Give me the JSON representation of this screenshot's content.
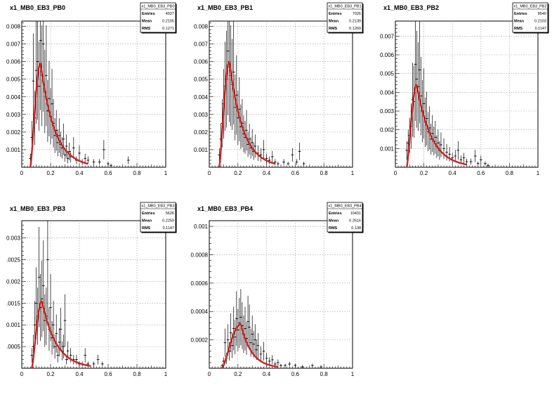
{
  "chart_data": [
    {
      "type": "histogram",
      "title": "x1_MB0_EB3_PB0",
      "xlim": [
        0,
        1
      ],
      "ylim": [
        0,
        0.0083
      ],
      "xticks": [
        0,
        0.2,
        0.4,
        0.6,
        0.8,
        1
      ],
      "xtick_labels": [
        "0",
        "0.2",
        "0.4",
        "0.6",
        "0.8",
        "1"
      ],
      "yticks": [
        0.001,
        0.002,
        0.003,
        0.004,
        0.005,
        0.006,
        0.007,
        0.008
      ],
      "ytick_labels": [
        "0.001",
        "0.002",
        "0.003",
        "0.004",
        "0.005",
        "0.006",
        "0.007",
        "0.008"
      ],
      "grid": true,
      "stats": {
        "name": "x1_MB0_EB3_PB0",
        "entries_label": "Entries",
        "entries": "4927",
        "mean_label": "Mean",
        "mean": "0.2105",
        "rms_label": "RMS",
        "rms": "0.1271"
      },
      "fit": {
        "color": "#cc2222",
        "x_range": [
          0.06,
          0.46
        ],
        "peak_x": 0.13,
        "peak_y": 0.0059
      },
      "points": [
        {
          "x": 0.06,
          "y": 0.0005
        },
        {
          "x": 0.07,
          "y": 0.0017
        },
        {
          "x": 0.08,
          "y": 0.0049
        },
        {
          "x": 0.09,
          "y": 0.0028
        },
        {
          "x": 0.1,
          "y": 0.0055
        },
        {
          "x": 0.11,
          "y": 0.006
        },
        {
          "x": 0.12,
          "y": 0.0046
        },
        {
          "x": 0.13,
          "y": 0.0072
        },
        {
          "x": 0.14,
          "y": 0.0052
        },
        {
          "x": 0.15,
          "y": 0.007
        },
        {
          "x": 0.16,
          "y": 0.0043
        },
        {
          "x": 0.17,
          "y": 0.0052
        },
        {
          "x": 0.18,
          "y": 0.0032
        },
        {
          "x": 0.19,
          "y": 0.0039
        },
        {
          "x": 0.2,
          "y": 0.0029
        },
        {
          "x": 0.21,
          "y": 0.0036
        },
        {
          "x": 0.22,
          "y": 0.0025
        },
        {
          "x": 0.23,
          "y": 0.0018
        },
        {
          "x": 0.24,
          "y": 0.0021
        },
        {
          "x": 0.25,
          "y": 0.0014
        },
        {
          "x": 0.26,
          "y": 0.0018
        },
        {
          "x": 0.27,
          "y": 0.0013
        },
        {
          "x": 0.28,
          "y": 0.0011
        },
        {
          "x": 0.29,
          "y": 0.0016
        },
        {
          "x": 0.3,
          "y": 0.0007
        },
        {
          "x": 0.31,
          "y": 0.0012
        },
        {
          "x": 0.32,
          "y": 0.0005
        },
        {
          "x": 0.33,
          "y": 0.0009
        },
        {
          "x": 0.34,
          "y": 0.0006
        },
        {
          "x": 0.36,
          "y": 0.0011
        },
        {
          "x": 0.38,
          "y": 0.0004
        },
        {
          "x": 0.4,
          "y": 0.0008
        },
        {
          "x": 0.42,
          "y": 0.0003
        },
        {
          "x": 0.44,
          "y": 0.0005
        },
        {
          "x": 0.46,
          "y": 0.0004
        },
        {
          "x": 0.5,
          "y": 0.0003
        },
        {
          "x": 0.54,
          "y": 0.0003
        },
        {
          "x": 0.57,
          "y": 0.001
        },
        {
          "x": 0.6,
          "y": 0.0002
        },
        {
          "x": 0.62,
          "y": 0.0001
        },
        {
          "x": 0.74,
          "y": 0.0004
        }
      ]
    },
    {
      "type": "histogram",
      "title": "x1_MB0_EB3_PB1",
      "xlim": [
        0,
        1
      ],
      "ylim": [
        0,
        0.0083
      ],
      "xticks": [
        0,
        0.2,
        0.4,
        0.6,
        0.8,
        1
      ],
      "xtick_labels": [
        "0",
        "0.2",
        "0.4",
        "0.6",
        "0.8",
        "1"
      ],
      "yticks": [
        0.001,
        0.002,
        0.003,
        0.004,
        0.005,
        0.006,
        0.007,
        0.008
      ],
      "ytick_labels": [
        "0.001",
        "0.002",
        "0.003",
        "0.004",
        "0.005",
        "0.006",
        "0.007",
        "0.008"
      ],
      "grid": true,
      "stats": {
        "name": "x1_MB0_EB3_PB1",
        "entries_label": "Entries",
        "entries": "7026",
        "mean_label": "Mean",
        "mean": "0.2139",
        "rms_label": "RMS",
        "rms": "0.1269"
      },
      "fit": {
        "color": "#cc2222",
        "x_range": [
          0.07,
          0.46
        ],
        "peak_x": 0.14,
        "peak_y": 0.006
      },
      "points": [
        {
          "x": 0.07,
          "y": 0.0007
        },
        {
          "x": 0.08,
          "y": 0.0016
        },
        {
          "x": 0.09,
          "y": 0.0025
        },
        {
          "x": 0.1,
          "y": 0.0036
        },
        {
          "x": 0.11,
          "y": 0.0046
        },
        {
          "x": 0.12,
          "y": 0.005
        },
        {
          "x": 0.13,
          "y": 0.0066
        },
        {
          "x": 0.14,
          "y": 0.0057
        },
        {
          "x": 0.15,
          "y": 0.0052
        },
        {
          "x": 0.16,
          "y": 0.0047
        },
        {
          "x": 0.17,
          "y": 0.0054
        },
        {
          "x": 0.18,
          "y": 0.0034
        },
        {
          "x": 0.19,
          "y": 0.0041
        },
        {
          "x": 0.2,
          "y": 0.0028
        },
        {
          "x": 0.21,
          "y": 0.0033
        },
        {
          "x": 0.22,
          "y": 0.0023
        },
        {
          "x": 0.23,
          "y": 0.0025
        },
        {
          "x": 0.24,
          "y": 0.0019
        },
        {
          "x": 0.25,
          "y": 0.0017
        },
        {
          "x": 0.26,
          "y": 0.0021
        },
        {
          "x": 0.27,
          "y": 0.0013
        },
        {
          "x": 0.28,
          "y": 0.0016
        },
        {
          "x": 0.29,
          "y": 0.0011
        },
        {
          "x": 0.3,
          "y": 0.0014
        },
        {
          "x": 0.31,
          "y": 0.0009
        },
        {
          "x": 0.32,
          "y": 0.0012
        },
        {
          "x": 0.34,
          "y": 0.0008
        },
        {
          "x": 0.36,
          "y": 0.0007
        },
        {
          "x": 0.38,
          "y": 0.001
        },
        {
          "x": 0.4,
          "y": 0.0005
        },
        {
          "x": 0.42,
          "y": 0.0004
        },
        {
          "x": 0.44,
          "y": 0.0006
        },
        {
          "x": 0.46,
          "y": 0.0003
        },
        {
          "x": 0.48,
          "y": 0.0002
        },
        {
          "x": 0.52,
          "y": 0.0003
        },
        {
          "x": 0.55,
          "y": 0.0002
        },
        {
          "x": 0.58,
          "y": 0.0007
        },
        {
          "x": 0.61,
          "y": 0.0003
        },
        {
          "x": 0.63,
          "y": 0.0009
        },
        {
          "x": 0.66,
          "y": 0.0002
        }
      ]
    },
    {
      "type": "histogram",
      "title": "x1_MB0_EB3_PB2",
      "xlim": [
        0,
        1
      ],
      "ylim": [
        0,
        0.0078
      ],
      "xticks": [
        0,
        0.2,
        0.4,
        0.6,
        0.8,
        1
      ],
      "xtick_labels": [
        "0",
        "0.2",
        "0.4",
        "0.6",
        "0.8",
        "1"
      ],
      "yticks": [
        0.001,
        0.002,
        0.003,
        0.004,
        0.005,
        0.006,
        0.007
      ],
      "ytick_labels": [
        "0.001",
        "0.002",
        "0.003",
        "0.004",
        "0.005",
        "0.006",
        "0.007"
      ],
      "grid": true,
      "stats": {
        "name": "x1_MB0_EB3_PB2",
        "entries_label": "Entries",
        "entries": "8540",
        "mean_label": "Mean",
        "mean": "0.2103",
        "rms_label": "RMS",
        "rms": "0.1147"
      },
      "fit": {
        "color": "#cc2222",
        "x_range": [
          0.08,
          0.5
        ],
        "peak_x": 0.15,
        "peak_y": 0.0044
      },
      "points": [
        {
          "x": 0.08,
          "y": 0.0009
        },
        {
          "x": 0.09,
          "y": 0.0013
        },
        {
          "x": 0.1,
          "y": 0.0017
        },
        {
          "x": 0.11,
          "y": 0.0022
        },
        {
          "x": 0.12,
          "y": 0.0036
        },
        {
          "x": 0.13,
          "y": 0.0035
        },
        {
          "x": 0.14,
          "y": 0.0055
        },
        {
          "x": 0.15,
          "y": 0.0047
        },
        {
          "x": 0.16,
          "y": 0.0043
        },
        {
          "x": 0.17,
          "y": 0.0052
        },
        {
          "x": 0.18,
          "y": 0.0038
        },
        {
          "x": 0.19,
          "y": 0.003
        },
        {
          "x": 0.2,
          "y": 0.0034
        },
        {
          "x": 0.21,
          "y": 0.0024
        },
        {
          "x": 0.22,
          "y": 0.0026
        },
        {
          "x": 0.23,
          "y": 0.0019
        },
        {
          "x": 0.24,
          "y": 0.0021
        },
        {
          "x": 0.25,
          "y": 0.0015
        },
        {
          "x": 0.26,
          "y": 0.0018
        },
        {
          "x": 0.27,
          "y": 0.0014
        },
        {
          "x": 0.28,
          "y": 0.0016
        },
        {
          "x": 0.29,
          "y": 0.0011
        },
        {
          "x": 0.3,
          "y": 0.0013
        },
        {
          "x": 0.31,
          "y": 0.0009
        },
        {
          "x": 0.32,
          "y": 0.0012
        },
        {
          "x": 0.34,
          "y": 0.001
        },
        {
          "x": 0.36,
          "y": 0.0008
        },
        {
          "x": 0.38,
          "y": 0.0007
        },
        {
          "x": 0.4,
          "y": 0.0005
        },
        {
          "x": 0.42,
          "y": 0.0006
        },
        {
          "x": 0.44,
          "y": 0.0009
        },
        {
          "x": 0.46,
          "y": 0.0004
        },
        {
          "x": 0.48,
          "y": 0.0005
        },
        {
          "x": 0.5,
          "y": 0.0003
        },
        {
          "x": 0.53,
          "y": 0.0003
        },
        {
          "x": 0.56,
          "y": 0.0006
        },
        {
          "x": 0.58,
          "y": 0.0002
        },
        {
          "x": 0.6,
          "y": 0.0004
        },
        {
          "x": 0.63,
          "y": 0.0002
        },
        {
          "x": 0.65,
          "y": 0.0001
        }
      ]
    },
    {
      "type": "histogram",
      "title": "x1_MB0_EB3_PB3",
      "xlim": [
        0,
        1
      ],
      "ylim": [
        0,
        0.0034
      ],
      "xticks": [
        0,
        0.2,
        0.4,
        0.6,
        0.8,
        1
      ],
      "xtick_labels": [
        "0",
        "0.2",
        "0.4",
        "0.6",
        "0.8",
        "1"
      ],
      "yticks": [
        0.0005,
        0.001,
        0.0015,
        0.002,
        0.0025,
        0.003
      ],
      "ytick_labels": [
        ".0005",
        "0.001",
        ".0015",
        "0.002",
        ".0025",
        "0.003"
      ],
      "grid": true,
      "stats": {
        "name": "x1_MB0_EB3_PB3",
        "entries_label": "Entries",
        "entries": "5626",
        "mean_label": "Mean",
        "mean": "0.2259",
        "rms_label": "RMS",
        "rms": "0.1147"
      },
      "fit": {
        "color": "#cc2222",
        "x_range": [
          0.07,
          0.48
        ],
        "peak_x": 0.14,
        "peak_y": 0.00155
      },
      "points": [
        {
          "x": 0.07,
          "y": 0.0003
        },
        {
          "x": 0.08,
          "y": 0.0005
        },
        {
          "x": 0.09,
          "y": 0.001
        },
        {
          "x": 0.1,
          "y": 0.0015
        },
        {
          "x": 0.11,
          "y": 0.0012
        },
        {
          "x": 0.12,
          "y": 0.0021
        },
        {
          "x": 0.13,
          "y": 0.0014
        },
        {
          "x": 0.14,
          "y": 0.0016
        },
        {
          "x": 0.15,
          "y": 0.0019
        },
        {
          "x": 0.16,
          "y": 0.0011
        },
        {
          "x": 0.17,
          "y": 0.0012
        },
        {
          "x": 0.18,
          "y": 0.0025
        },
        {
          "x": 0.19,
          "y": 0.0009
        },
        {
          "x": 0.2,
          "y": 0.0014
        },
        {
          "x": 0.21,
          "y": 0.0007
        },
        {
          "x": 0.22,
          "y": 0.001
        },
        {
          "x": 0.23,
          "y": 0.0005
        },
        {
          "x": 0.24,
          "y": 0.0008
        },
        {
          "x": 0.25,
          "y": 0.0003
        },
        {
          "x": 0.26,
          "y": 0.0006
        },
        {
          "x": 0.27,
          "y": 0.0009
        },
        {
          "x": 0.28,
          "y": 0.0004
        },
        {
          "x": 0.29,
          "y": 0.0005
        },
        {
          "x": 0.3,
          "y": 0.0011
        },
        {
          "x": 0.31,
          "y": 0.0002
        },
        {
          "x": 0.32,
          "y": 0.0004
        },
        {
          "x": 0.34,
          "y": 0.0003
        },
        {
          "x": 0.36,
          "y": 0.0002
        },
        {
          "x": 0.38,
          "y": 0.0002
        },
        {
          "x": 0.4,
          "y": 0.0001
        },
        {
          "x": 0.42,
          "y": 0.0001
        },
        {
          "x": 0.44,
          "y": 0.0003
        },
        {
          "x": 0.46,
          "y": 0.0001
        },
        {
          "x": 0.5,
          "y": 0.0001
        },
        {
          "x": 0.53,
          "y": 0.0002
        },
        {
          "x": 0.56,
          "y": 0.0001
        }
      ]
    },
    {
      "type": "histogram",
      "title": "x1_MB0_EB3_PB4",
      "xlim": [
        0,
        1
      ],
      "ylim": [
        0,
        0.00104
      ],
      "xticks": [
        0,
        0.2,
        0.4,
        0.6,
        0.8,
        1
      ],
      "xtick_labels": [
        "0",
        "0.2",
        "0.4",
        "0.6",
        "0.8",
        "1"
      ],
      "yticks": [
        0.0002,
        0.0004,
        0.0006,
        0.0008,
        0.001
      ],
      "ytick_labels": [
        "0.0002",
        "0.0004",
        "0.0006",
        "0.0008",
        "0.001"
      ],
      "grid": true,
      "stats": {
        "name": "x1_MB0_EB3_PB4",
        "entries_label": "Entries",
        "entries": "10431",
        "mean_label": "Mean",
        "mean": "0.2616",
        "rms_label": "RMS",
        "rms": "0.138"
      },
      "fit": {
        "color": "#cc2222",
        "x_range": [
          0.09,
          0.48
        ],
        "peak_x": 0.22,
        "peak_y": 0.00031
      },
      "points": [
        {
          "x": 0.09,
          "y": 2e-05
        },
        {
          "x": 0.1,
          "y": 5e-05
        },
        {
          "x": 0.11,
          "y": 0.00018
        },
        {
          "x": 0.12,
          "y": 7e-05
        },
        {
          "x": 0.13,
          "y": 0.0002
        },
        {
          "x": 0.14,
          "y": 0.00012
        },
        {
          "x": 0.15,
          "y": 0.00025
        },
        {
          "x": 0.16,
          "y": 0.00016
        },
        {
          "x": 0.17,
          "y": 0.00028
        },
        {
          "x": 0.18,
          "y": 0.00022
        },
        {
          "x": 0.19,
          "y": 0.00035
        },
        {
          "x": 0.2,
          "y": 0.00027
        },
        {
          "x": 0.21,
          "y": 0.00032
        },
        {
          "x": 0.22,
          "y": 0.00036
        },
        {
          "x": 0.23,
          "y": 0.0003
        },
        {
          "x": 0.24,
          "y": 0.00024
        },
        {
          "x": 0.25,
          "y": 0.00028
        },
        {
          "x": 0.26,
          "y": 0.00021
        },
        {
          "x": 0.27,
          "y": 0.00033
        },
        {
          "x": 0.28,
          "y": 0.00029
        },
        {
          "x": 0.29,
          "y": 0.00018
        },
        {
          "x": 0.3,
          "y": 0.00024
        },
        {
          "x": 0.31,
          "y": 0.00017
        },
        {
          "x": 0.32,
          "y": 0.0002
        },
        {
          "x": 0.33,
          "y": 0.00013
        },
        {
          "x": 0.34,
          "y": 0.00016
        },
        {
          "x": 0.36,
          "y": 0.0001
        },
        {
          "x": 0.38,
          "y": 0.00012
        },
        {
          "x": 0.4,
          "y": 7e-05
        },
        {
          "x": 0.42,
          "y": 5e-05
        },
        {
          "x": 0.44,
          "y": 6e-05
        },
        {
          "x": 0.46,
          "y": 3e-05
        },
        {
          "x": 0.48,
          "y": 4e-05
        },
        {
          "x": 0.5,
          "y": 2e-05
        },
        {
          "x": 0.53,
          "y": 2e-05
        },
        {
          "x": 0.56,
          "y": 3e-05
        },
        {
          "x": 0.6,
          "y": 2e-05
        },
        {
          "x": 0.65,
          "y": 1e-05
        },
        {
          "x": 0.72,
          "y": 2e-05
        },
        {
          "x": 0.78,
          "y": 1e-05
        }
      ]
    }
  ]
}
